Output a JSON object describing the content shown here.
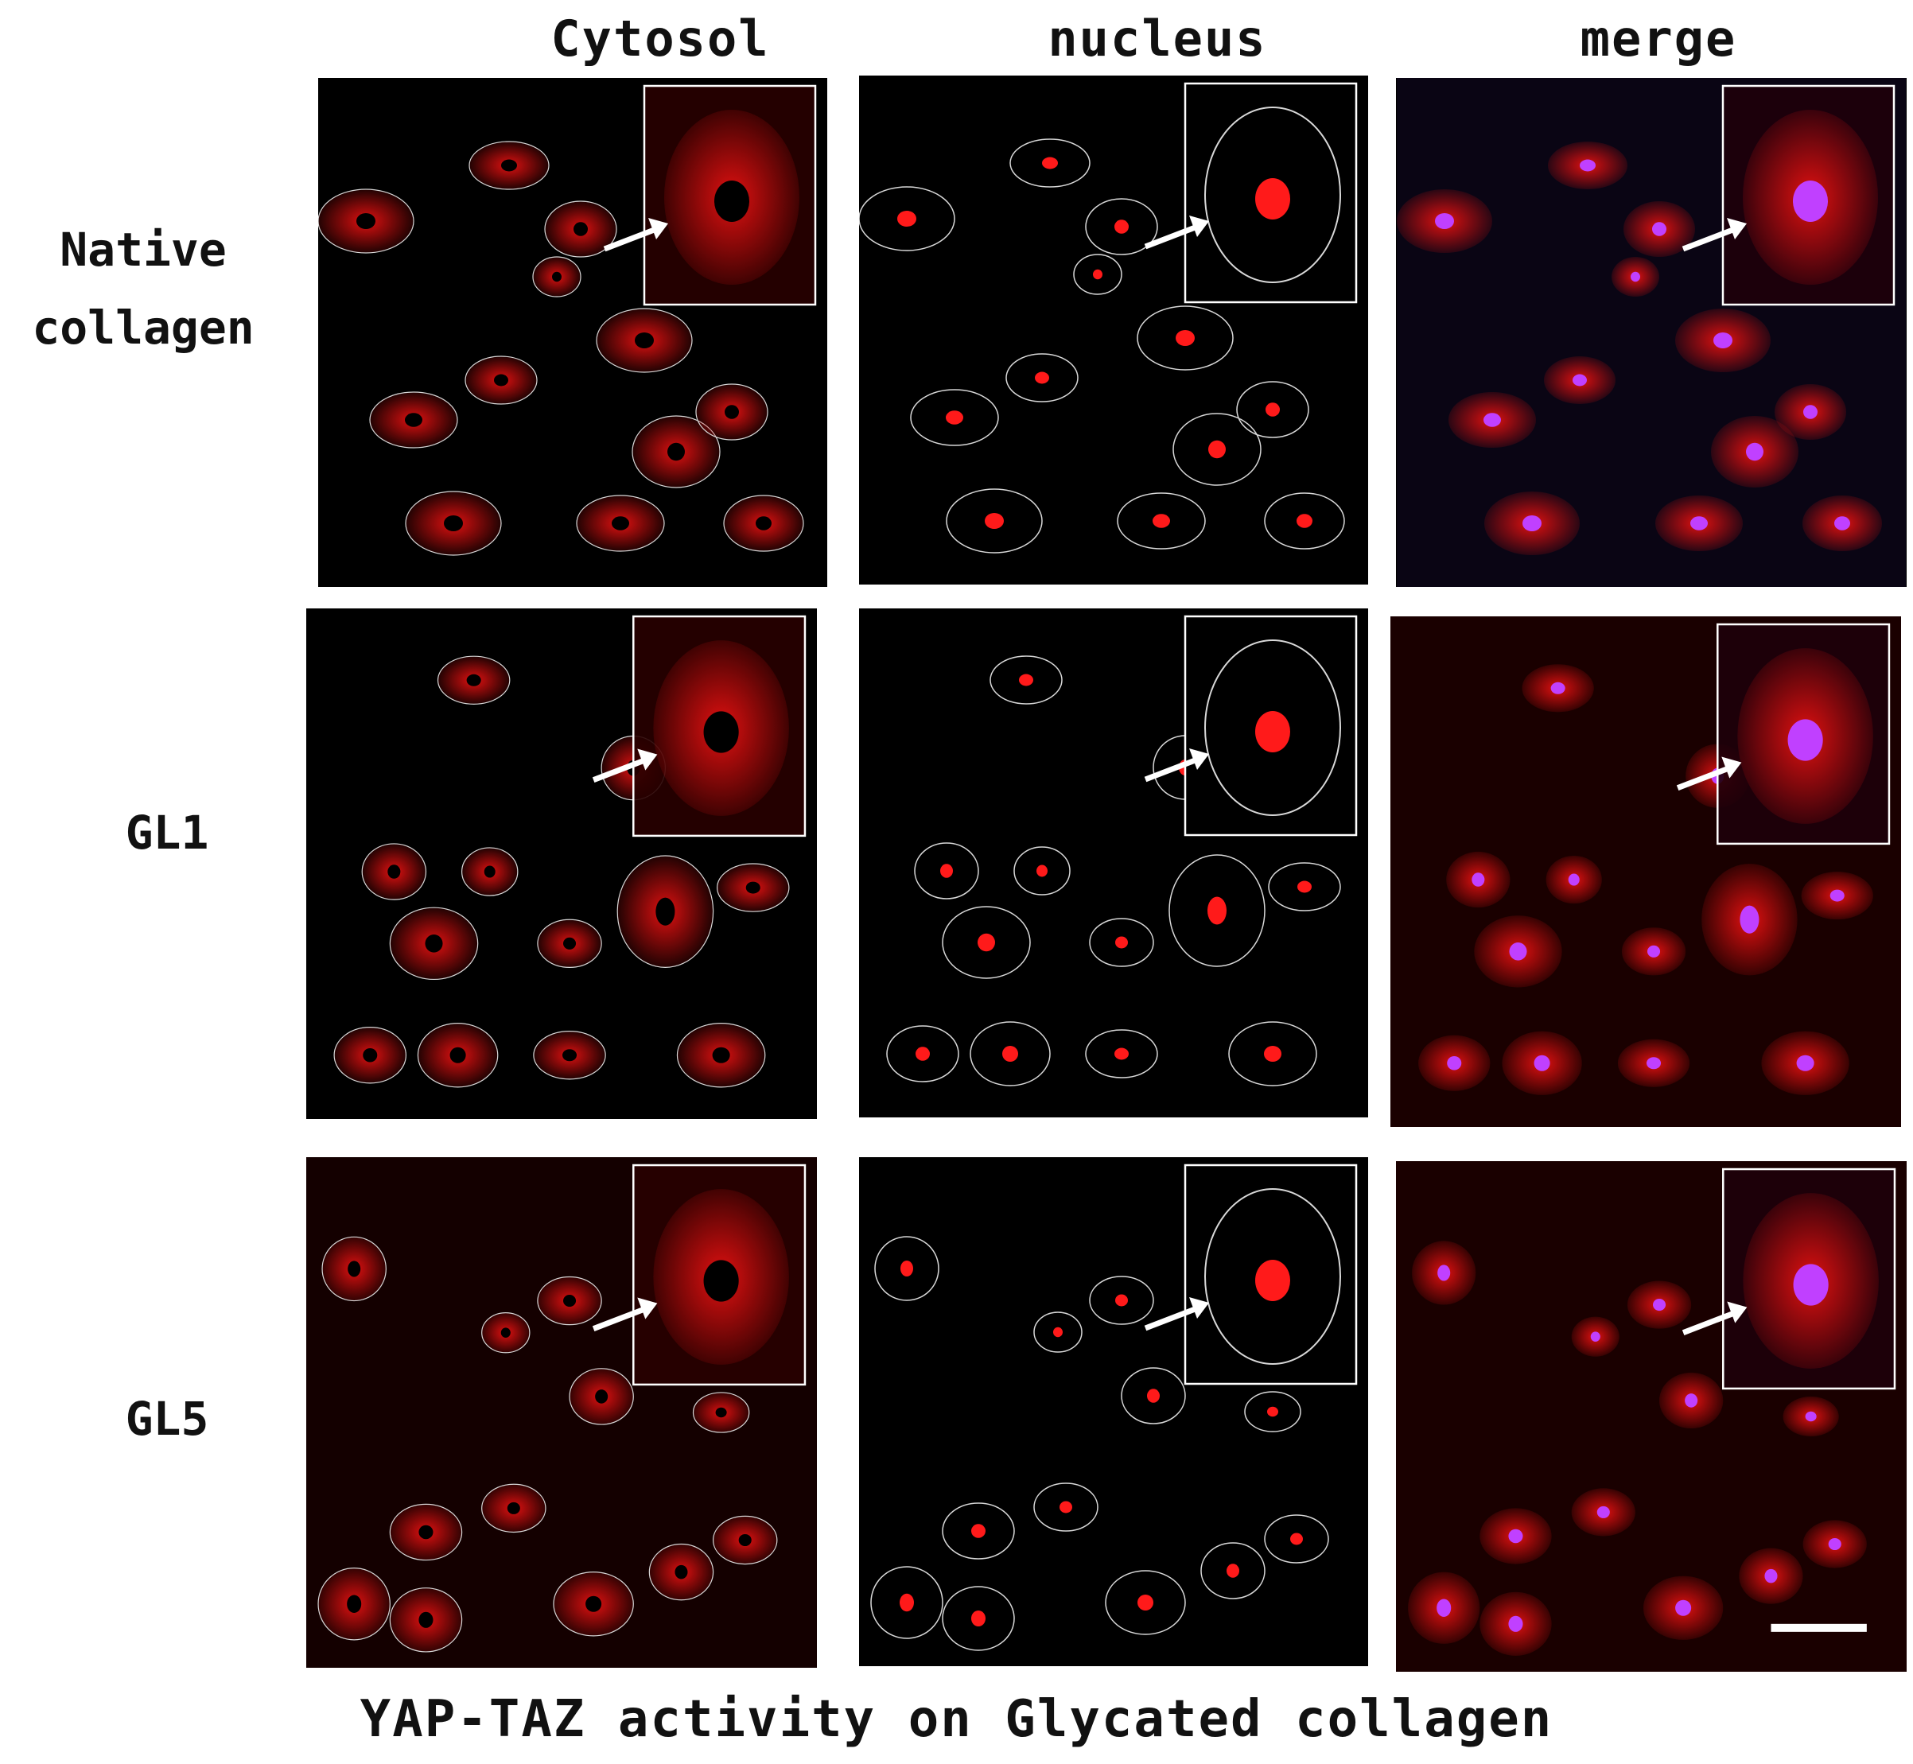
{
  "columns": [
    "Cytosol",
    "nucleus",
    "merge"
  ],
  "rows": [
    {
      "label_line1": "Native",
      "label_line2": "collagen"
    },
    {
      "label_line1": "GL1",
      "label_line2": ""
    },
    {
      "label_line1": "GL5",
      "label_line2": ""
    }
  ],
  "caption": "YAP-TAZ activity on Glycated collagen",
  "colors": {
    "cytosol_stain": "#e01010",
    "nucleus_stain": "#ff1a1a",
    "merge_nucleus": "#c040ff",
    "outline": "#d8d8d8",
    "background": "#000000"
  },
  "icons": [
    "arrow-icon",
    "inset-box",
    "scale-bar"
  ]
}
